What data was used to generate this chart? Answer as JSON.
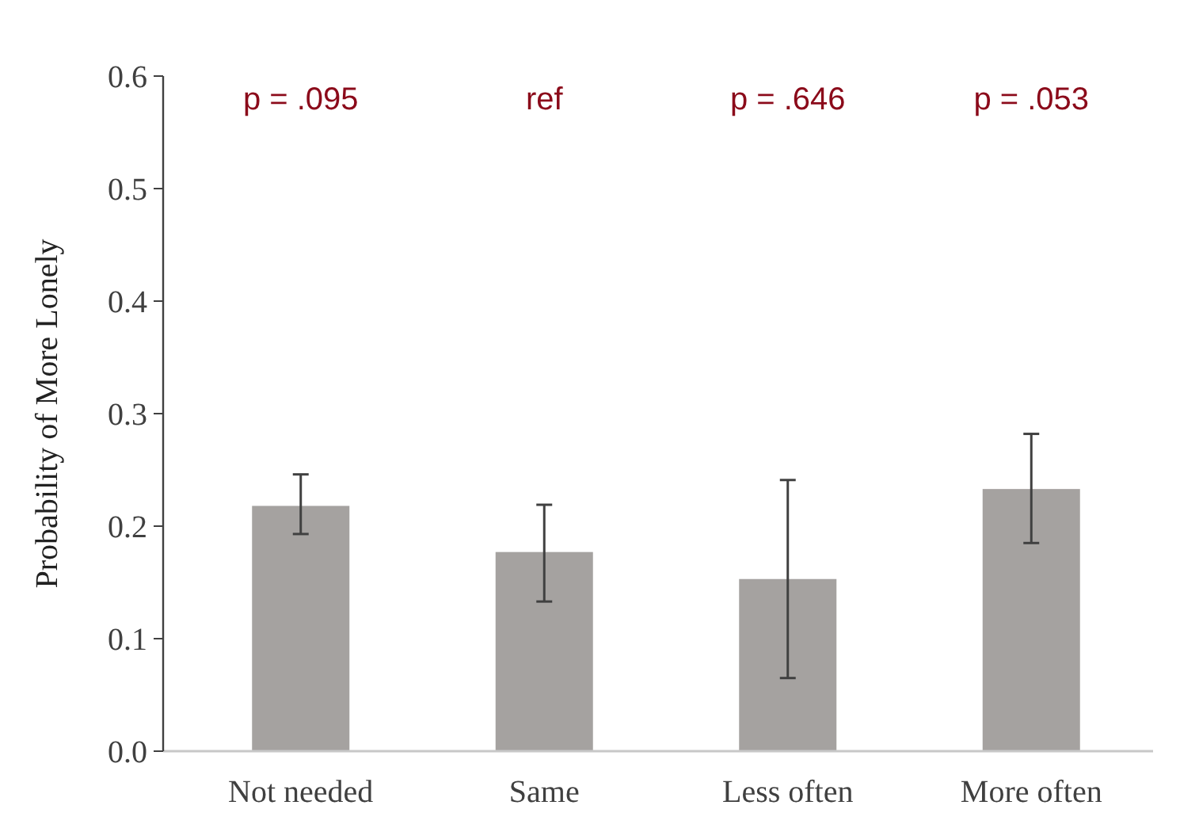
{
  "chart_data": {
    "type": "bar",
    "ylabel": "Probability of More Lonely",
    "categories": [
      "Not needed",
      "Same",
      "Less often",
      "More often"
    ],
    "values": [
      0.218,
      0.177,
      0.153,
      0.233
    ],
    "color": "#a5a2a0",
    "errors": [
      [
        0.193,
        0.246
      ],
      [
        0.133,
        0.219
      ],
      [
        0.065,
        0.241
      ],
      [
        0.185,
        0.282
      ]
    ],
    "ylim": [
      0,
      0.6
    ],
    "yticks": [
      {
        "value": 0,
        "label": "0.0"
      },
      {
        "value": 0.1,
        "label": "0.1"
      },
      {
        "value": 0.2,
        "label": "0.2"
      },
      {
        "value": 0.3,
        "label": "0.3"
      },
      {
        "value": 0.4,
        "label": "0.4"
      },
      {
        "value": 0.5,
        "label": "0.5"
      },
      {
        "value": 0.6,
        "label": "0.6"
      }
    ],
    "grid": false,
    "annotations": [
      "p = .095",
      "ref",
      "p = .646",
      "p = .053"
    ]
  }
}
